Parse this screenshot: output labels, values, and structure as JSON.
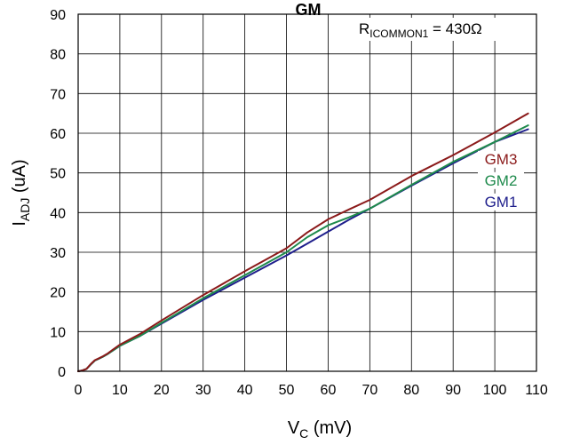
{
  "chart_data": {
    "type": "line",
    "title": "GM",
    "xlabel": {
      "main": "V",
      "sub": "C",
      "rest": " (mV)"
    },
    "ylabel": {
      "main": "I",
      "sub": "ADJ",
      "rest": " (uA)"
    },
    "xlim": [
      0,
      110
    ],
    "ylim": [
      0,
      90
    ],
    "xticks": [
      0,
      10,
      20,
      30,
      40,
      50,
      60,
      70,
      80,
      90,
      100,
      110
    ],
    "yticks": [
      0,
      10,
      20,
      30,
      40,
      50,
      60,
      70,
      80,
      90
    ],
    "grid": true,
    "legend_position": "right",
    "annotation": {
      "main": "R",
      "sub": "ICOMMON1",
      "rest": " = 430Ω",
      "position": "top-right"
    },
    "series": [
      {
        "name": "GM3",
        "color": "#8B1A1A",
        "x": [
          0,
          1,
          2,
          3,
          4,
          5,
          6,
          7,
          8,
          10,
          15,
          20,
          30,
          40,
          50,
          55,
          60,
          65,
          70,
          80,
          90,
          100,
          108
        ],
        "y": [
          0,
          0.2,
          0.6,
          1.8,
          2.8,
          3.3,
          3.8,
          4.4,
          5.2,
          6.7,
          9.5,
          12.8,
          19.2,
          25.2,
          31.0,
          35.0,
          38.3,
          40.8,
          43.2,
          49.2,
          54.5,
          60.2,
          65.0
        ]
      },
      {
        "name": "GM2",
        "color": "#1E8A4C",
        "x": [
          0,
          1,
          2,
          3,
          4,
          5,
          6,
          7,
          8,
          10,
          15,
          20,
          30,
          40,
          50,
          55,
          60,
          65,
          70,
          80,
          90,
          100,
          108
        ],
        "y": [
          0,
          0.2,
          0.6,
          1.7,
          2.7,
          3.2,
          3.7,
          4.3,
          5.0,
          6.4,
          9.0,
          12.2,
          18.4,
          24.2,
          30.0,
          33.8,
          36.8,
          38.8,
          41.0,
          47.0,
          52.8,
          57.8,
          62.0
        ]
      },
      {
        "name": "GM1",
        "color": "#1F1F8C",
        "x": [
          0,
          1,
          2,
          3,
          4,
          5,
          6,
          7,
          8,
          10,
          15,
          20,
          30,
          40,
          50,
          55,
          60,
          65,
          70,
          80,
          90,
          100,
          108
        ],
        "y": [
          0,
          0.2,
          0.6,
          1.7,
          2.7,
          3.2,
          3.7,
          4.3,
          5.0,
          6.4,
          9.0,
          12.0,
          18.0,
          23.6,
          29.2,
          32.2,
          35.2,
          38.2,
          41.0,
          46.8,
          52.4,
          57.8,
          61.0
        ]
      }
    ]
  }
}
